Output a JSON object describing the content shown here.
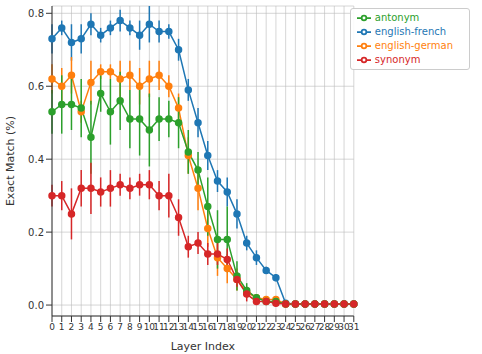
{
  "chart_data": {
    "type": "line",
    "x_label": "Layer Index",
    "y_label": "Exact Match (%)",
    "categories": [
      "0",
      "1",
      "2",
      "3",
      "4",
      "5",
      "6",
      "7",
      "8",
      "9",
      "10",
      "11",
      "12",
      "13",
      "14",
      "15",
      "16",
      "17",
      "18",
      "19",
      "20",
      "21",
      "22",
      "23",
      "24",
      "25",
      "26",
      "27",
      "28",
      "29",
      "30",
      "31"
    ],
    "ylim": [
      -0.03,
      0.82
    ],
    "yticks": [
      {
        "value": 0,
        "label": "0.0"
      },
      0.2,
      0.4,
      0.6,
      0.8
    ],
    "grid": true,
    "legend": "upper right",
    "marker": "circle",
    "series": [
      {
        "name": "english-french",
        "color": "#1f77b4",
        "values": [
          0.73,
          0.76,
          0.72,
          0.73,
          0.77,
          0.74,
          0.76,
          0.78,
          0.76,
          0.74,
          0.77,
          0.75,
          0.75,
          0.7,
          0.59,
          0.5,
          0.41,
          0.34,
          0.31,
          0.25,
          0.17,
          0.13,
          0.095,
          0.075,
          0.005,
          0.003,
          0.003,
          0.003,
          0.003,
          0.003,
          0.003,
          0.003
        ],
        "errors": [
          0.04,
          0.02,
          0.05,
          0.04,
          0.03,
          0.02,
          0.02,
          0.03,
          0.02,
          0.04,
          0.05,
          0.03,
          0.02,
          0.03,
          0.03,
          0.04,
          0.04,
          0.03,
          0.04,
          0.04,
          0.02,
          0.02,
          0.01,
          0.01,
          0.005,
          0,
          0,
          0,
          0,
          0,
          0,
          0
        ]
      },
      {
        "name": "english-german",
        "color": "#ff7f0e",
        "values": [
          0.62,
          0.6,
          0.63,
          0.53,
          0.61,
          0.64,
          0.64,
          0.62,
          0.63,
          0.6,
          0.62,
          0.63,
          0.6,
          0.54,
          0.41,
          0.32,
          0.21,
          0.13,
          0.1,
          0.07,
          0.035,
          0.02,
          0.015,
          0.015,
          0.003,
          0.003,
          0.003,
          0.003,
          0.003,
          0.003,
          0.003,
          0.003
        ],
        "errors": [
          0.04,
          0.05,
          0.05,
          0.03,
          0.06,
          0.02,
          0.02,
          0.05,
          0.04,
          0.05,
          0.05,
          0.04,
          0.03,
          0.04,
          0.05,
          0.06,
          0.05,
          0.05,
          0.04,
          0.03,
          0.01,
          0.01,
          0.005,
          0.005,
          0,
          0,
          0,
          0,
          0,
          0,
          0,
          0
        ]
      },
      {
        "name": "antonym",
        "color": "#2ca02c",
        "values": [
          0.53,
          0.55,
          0.55,
          0.54,
          0.46,
          0.58,
          0.53,
          0.56,
          0.51,
          0.51,
          0.48,
          0.51,
          0.51,
          0.5,
          0.42,
          0.37,
          0.27,
          0.18,
          0.18,
          0.08,
          0.04,
          0.02,
          0.01,
          0.01,
          0.003,
          0.003,
          0.003,
          0.003,
          0.003,
          0.003,
          0.003,
          0.003
        ],
        "errors": [
          0.06,
          0.08,
          0.07,
          0.08,
          0.1,
          0.05,
          0.09,
          0.08,
          0.08,
          0.1,
          0.1,
          0.06,
          0.05,
          0.07,
          0.06,
          0.05,
          0.08,
          0.08,
          0.09,
          0.04,
          0.02,
          0.01,
          0.01,
          0.005,
          0,
          0,
          0,
          0,
          0,
          0,
          0,
          0
        ]
      },
      {
        "name": "synonym",
        "color": "#d62728",
        "values": [
          0.3,
          0.3,
          0.25,
          0.32,
          0.32,
          0.31,
          0.32,
          0.33,
          0.32,
          0.33,
          0.33,
          0.3,
          0.3,
          0.24,
          0.16,
          0.17,
          0.14,
          0.14,
          0.125,
          0.07,
          0.03,
          0.01,
          0.01,
          0.005,
          0.003,
          0.003,
          0.003,
          0.003,
          0.003,
          0.003,
          0.003,
          0.003
        ],
        "errors": [
          0.03,
          0.04,
          0.07,
          0.05,
          0.07,
          0.04,
          0.05,
          0.03,
          0.03,
          0.03,
          0.04,
          0.04,
          0.06,
          0.05,
          0.03,
          0.03,
          0.03,
          0.03,
          0.03,
          0.02,
          0.02,
          0.01,
          0.005,
          0.005,
          0,
          0,
          0,
          0,
          0,
          0,
          0,
          0
        ]
      }
    ]
  }
}
